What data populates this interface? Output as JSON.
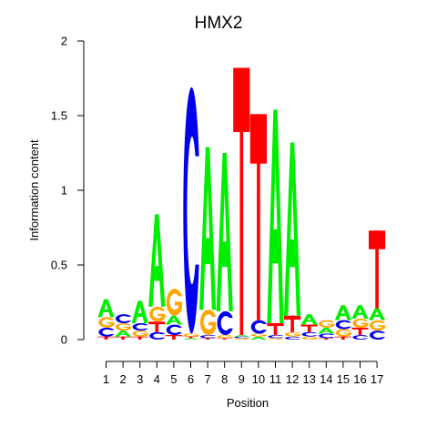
{
  "chart_data": {
    "type": "sequence-logo",
    "title": "HMX2",
    "xlabel": "Position",
    "ylabel": "Information content",
    "ylim": [
      0,
      2
    ],
    "yticks": [
      "0",
      "0.5",
      "1",
      "1.5",
      "2"
    ],
    "positions": [
      "1",
      "2",
      "3",
      "4",
      "5",
      "6",
      "7",
      "8",
      "9",
      "10",
      "11",
      "12",
      "13",
      "14",
      "15",
      "16",
      "17"
    ],
    "colors": {
      "A": "#00ee00",
      "C": "#0000ee",
      "G": "#ffa500",
      "T": "#ff0000"
    },
    "stacks": [
      [
        [
          "T",
          0.02
        ],
        [
          "C",
          0.06
        ],
        [
          "G",
          0.07
        ],
        [
          "A",
          0.12
        ]
      ],
      [
        [
          "T",
          0.02
        ],
        [
          "A",
          0.04
        ],
        [
          "G",
          0.05
        ],
        [
          "C",
          0.06
        ]
      ],
      [
        [
          "T",
          0.02
        ],
        [
          "G",
          0.04
        ],
        [
          "C",
          0.05
        ],
        [
          "A",
          0.15
        ]
      ],
      [
        [
          "C",
          0.05
        ],
        [
          "T",
          0.07
        ],
        [
          "G",
          0.1
        ],
        [
          "A",
          0.62
        ]
      ],
      [
        [
          "T",
          0.03
        ],
        [
          "C",
          0.07
        ],
        [
          "A",
          0.06
        ],
        [
          "G",
          0.18
        ]
      ],
      [
        [
          "A",
          0.01
        ],
        [
          "T",
          0.01
        ],
        [
          "G",
          0.02
        ],
        [
          "C",
          1.65
        ]
      ],
      [
        [
          "T",
          0.01
        ],
        [
          "C",
          0.02
        ],
        [
          "G",
          0.17
        ],
        [
          "A",
          1.09
        ]
      ],
      [
        [
          "T",
          0.01
        ],
        [
          "G",
          0.02
        ],
        [
          "C",
          0.16
        ],
        [
          "A",
          1.06
        ]
      ],
      [
        [
          "G",
          0.01
        ],
        [
          "C",
          0.01
        ],
        [
          "A",
          0.01
        ],
        [
          "T",
          1.79
        ]
      ],
      [
        [
          "A",
          0.02
        ],
        [
          "G",
          0.02
        ],
        [
          "C",
          0.09
        ],
        [
          "T",
          1.38
        ]
      ],
      [
        [
          "G",
          0.01
        ],
        [
          "C",
          0.02
        ],
        [
          "T",
          0.08
        ],
        [
          "A",
          1.43
        ]
      ],
      [
        [
          "C",
          0.02
        ],
        [
          "G",
          0.03
        ],
        [
          "T",
          0.11
        ],
        [
          "A",
          1.16
        ]
      ],
      [
        [
          "G",
          0.02
        ],
        [
          "C",
          0.03
        ],
        [
          "T",
          0.05
        ],
        [
          "A",
          0.07
        ]
      ],
      [
        [
          "T",
          0.01
        ],
        [
          "C",
          0.03
        ],
        [
          "A",
          0.04
        ],
        [
          "G",
          0.05
        ]
      ],
      [
        [
          "T",
          0.02
        ],
        [
          "G",
          0.05
        ],
        [
          "C",
          0.06
        ],
        [
          "A",
          0.1
        ]
      ],
      [
        [
          "C",
          0.03
        ],
        [
          "T",
          0.05
        ],
        [
          "G",
          0.06
        ],
        [
          "A",
          0.09
        ]
      ],
      [
        [
          "C",
          0.06
        ],
        [
          "G",
          0.07
        ],
        [
          "A",
          0.08
        ],
        [
          "T",
          0.52
        ]
      ]
    ]
  }
}
